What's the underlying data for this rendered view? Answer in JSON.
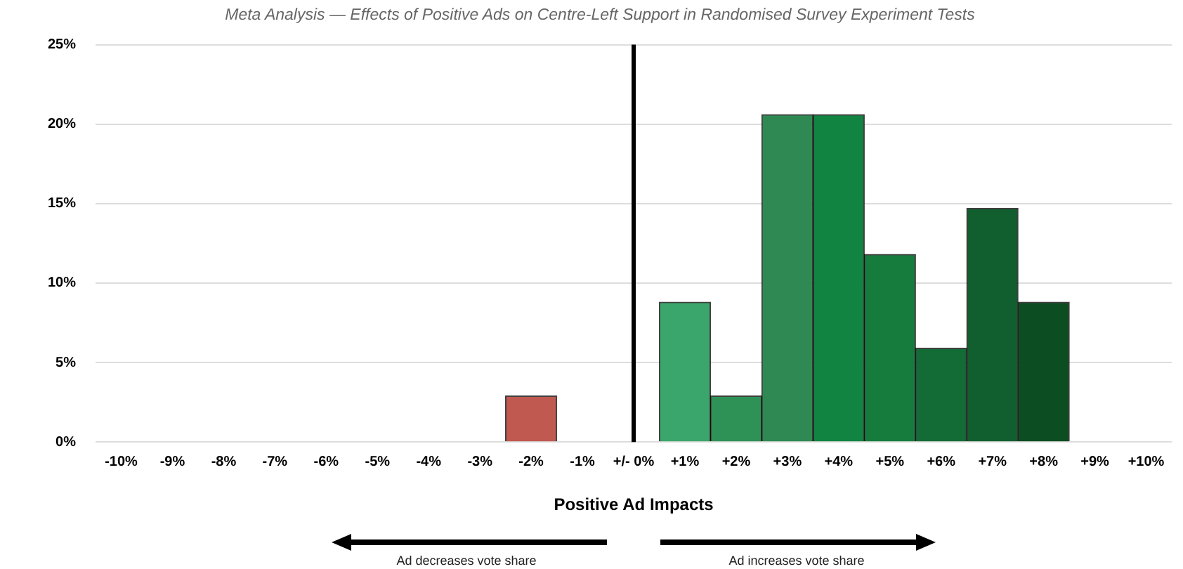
{
  "chart_data": {
    "type": "bar",
    "title": "Meta Analysis — Effects of Positive Ads on Centre-Left Support in Randomised Survey Experiment Tests",
    "xlabel": "Positive Ad Impacts",
    "categories": [
      "-10%",
      "-9%",
      "-8%",
      "-7%",
      "-6%",
      "-5%",
      "-4%",
      "-3%",
      "-2%",
      "-1%",
      "+/- 0%",
      "+1%",
      "+2%",
      "+3%",
      "+4%",
      "+5%",
      "+6%",
      "+7%",
      "+8%",
      "+9%",
      "+10%"
    ],
    "values": [
      0,
      0,
      0,
      0,
      0,
      0,
      0,
      0,
      2.9,
      0,
      0,
      8.8,
      2.9,
      20.6,
      20.6,
      11.8,
      5.9,
      14.7,
      8.8,
      0,
      0
    ],
    "colors": [
      "#c0594f",
      "#c0594f",
      "#c0594f",
      "#c0594f",
      "#c0594f",
      "#c0594f",
      "#c0594f",
      "#c0594f",
      "#c0594f",
      "#c0594f",
      "#3aa66b",
      "#3aa66b",
      "#2e9155",
      "#2e8a52",
      "#118442",
      "#167c3e",
      "#136b35",
      "#115e2e",
      "#0d4d22",
      "#0d4d22",
      "#0d4d22"
    ],
    "ylim": [
      0,
      25
    ],
    "yticks": [
      {
        "value": 0,
        "label": "0%"
      },
      {
        "value": 5,
        "label": "5%"
      },
      {
        "value": 10,
        "label": "10%"
      },
      {
        "value": 15,
        "label": "15%"
      },
      {
        "value": 20,
        "label": "20%"
      },
      {
        "value": 25,
        "label": "25%"
      }
    ],
    "grid": "y",
    "legend": false,
    "ref_lines": [
      {
        "axis": "x",
        "value": "+/- 0%",
        "color": "#000000"
      }
    ],
    "annotations": [
      "Ad decreases vote share",
      "Ad increases vote share"
    ]
  }
}
